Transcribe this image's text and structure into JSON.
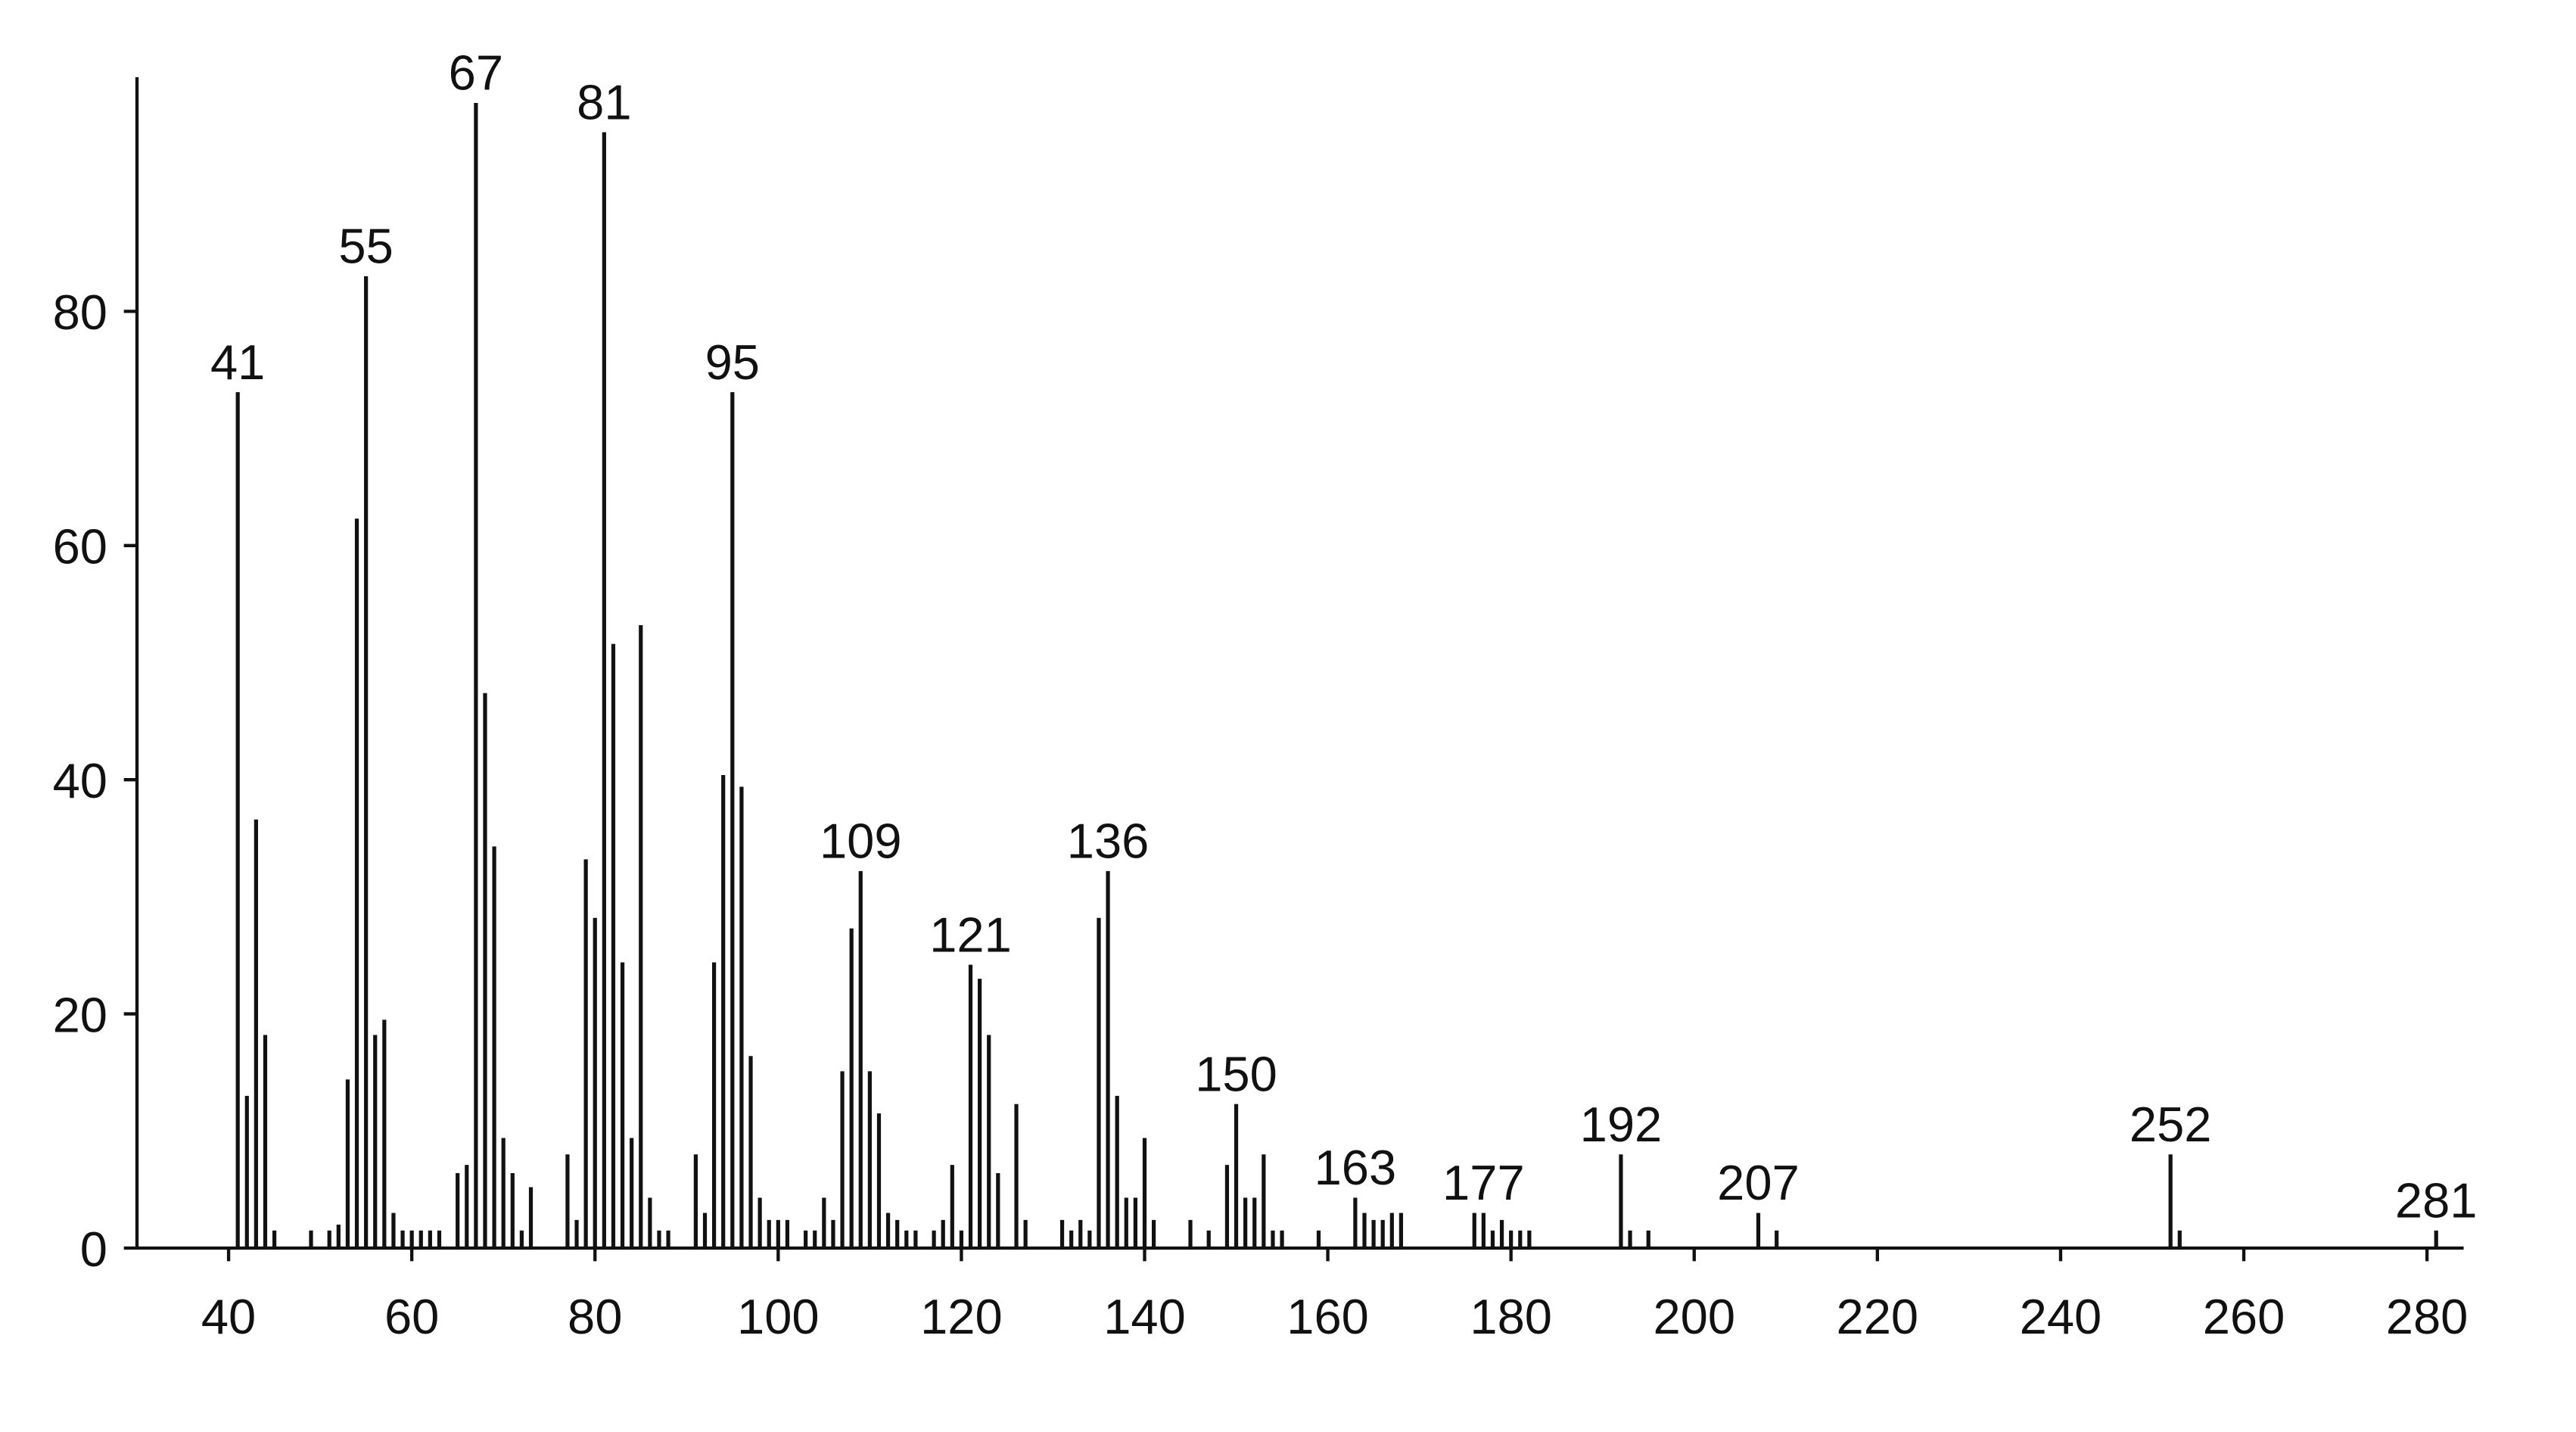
{
  "chart_data": {
    "type": "stick",
    "color": "#111111",
    "x": [
      41,
      42,
      43,
      44,
      45,
      49,
      51,
      52,
      53,
      54,
      55,
      56,
      57,
      58,
      59,
      60,
      61,
      62,
      63,
      65,
      66,
      67,
      68,
      69,
      70,
      71,
      72,
      73,
      77,
      78,
      79,
      80,
      81,
      82,
      83,
      84,
      85,
      86,
      87,
      88,
      91,
      92,
      93,
      94,
      95,
      96,
      97,
      98,
      99,
      100,
      101,
      103,
      104,
      105,
      106,
      107,
      108,
      109,
      110,
      111,
      112,
      113,
      114,
      115,
      117,
      118,
      119,
      120,
      121,
      122,
      123,
      124,
      126,
      127,
      131,
      132,
      133,
      134,
      135,
      136,
      137,
      138,
      139,
      140,
      141,
      145,
      147,
      149,
      150,
      151,
      152,
      153,
      154,
      155,
      159,
      163,
      164,
      165,
      166,
      167,
      168,
      176,
      177,
      178,
      179,
      180,
      181,
      182,
      192,
      193,
      195,
      207,
      209,
      252,
      253,
      281
    ],
    "values": [
      73.1,
      13,
      36.6,
      18.2,
      1.5,
      1.5,
      1.5,
      2,
      14.4,
      62.3,
      83,
      18.2,
      19.5,
      3,
      1.5,
      1.5,
      1.5,
      1.5,
      1.5,
      6.4,
      7.1,
      97.8,
      47.4,
      34.3,
      9.4,
      6.4,
      1.5,
      5.2,
      8,
      2.4,
      33.2,
      28.2,
      95.3,
      51.6,
      24.4,
      9.4,
      53.2,
      4.3,
      1.5,
      1.5,
      8,
      3,
      24.4,
      40.4,
      73.1,
      39.4,
      16.4,
      4.3,
      2.4,
      2.4,
      2.4,
      1.5,
      1.5,
      4.3,
      2.4,
      15.1,
      27.3,
      32.2,
      15.1,
      11.5,
      3,
      2.4,
      1.5,
      1.5,
      1.5,
      2.4,
      7.1,
      1.5,
      24.2,
      23,
      18.2,
      6.4,
      12.3,
      2.4,
      2.4,
      1.5,
      2.4,
      1.5,
      28.2,
      32.2,
      13,
      4.3,
      4.3,
      9.4,
      2.4,
      2.4,
      1.5,
      7.1,
      12.3,
      4.3,
      4.3,
      8,
      1.5,
      1.5,
      1.5,
      4.3,
      3,
      2.4,
      2.4,
      3,
      3,
      3,
      3,
      1.5,
      2.4,
      1.5,
      1.5,
      1.5,
      8,
      1.5,
      1.5,
      3,
      1.5,
      8,
      1.5,
      1.5
    ],
    "annotations": [
      41,
      55,
      67,
      81,
      95,
      109,
      121,
      136,
      150,
      163,
      177,
      192,
      207,
      252,
      281
    ],
    "xlim": [
      30,
      284
    ],
    "ylim": [
      0,
      100
    ],
    "xticks": [
      40,
      60,
      80,
      100,
      120,
      140,
      160,
      180,
      200,
      220,
      240,
      260,
      280
    ],
    "yticks": [
      0,
      20,
      40,
      60,
      80
    ]
  }
}
